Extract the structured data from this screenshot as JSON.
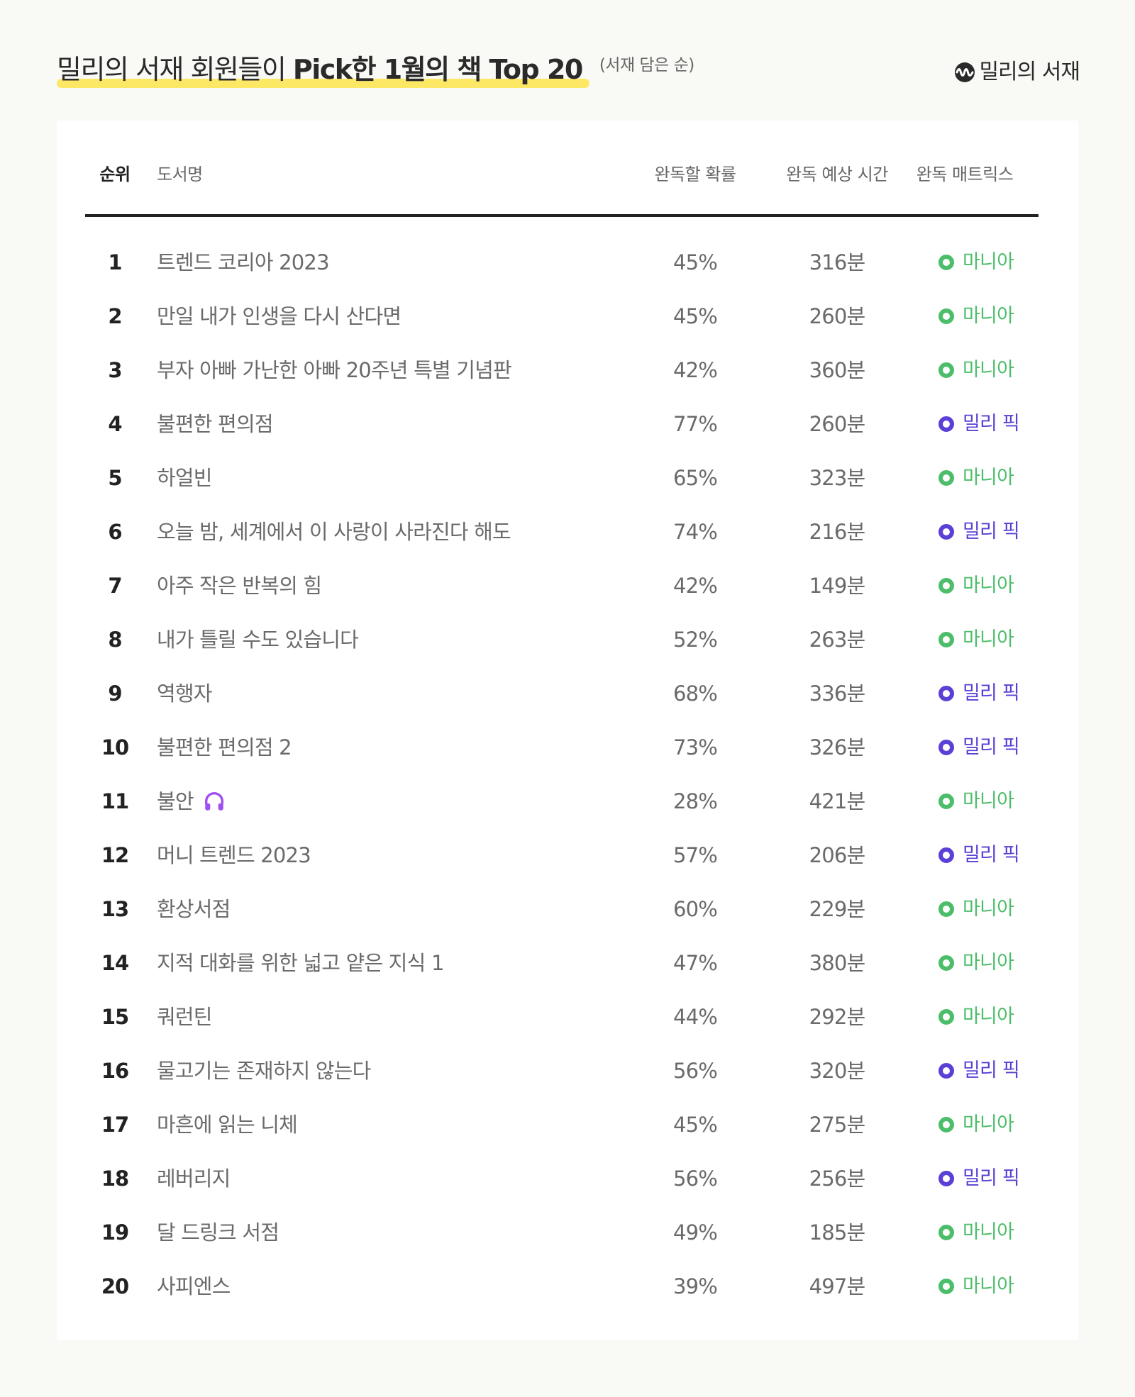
{
  "header": {
    "title_light": "밀리의 서재 회원들이 ",
    "title_bold": "Pick한 1월의 책 Top 20",
    "subtitle": "(서재 담은 순)",
    "logo_text": "밀리의 서재",
    "highlight_color": "#fde865"
  },
  "table": {
    "columns": {
      "rank": "순위",
      "title": "도서명",
      "completion_rate": "완독할 확률",
      "estimated_time": "완독 예상 시간",
      "matrix": "완독 매트릭스"
    },
    "matrix_colors": {
      "마니아": "#4cbe6a",
      "밀리 픽": "#5b3fd6"
    },
    "rows": [
      {
        "rank": "1",
        "title": "트렌드 코리아 2023",
        "rate": "45%",
        "time": "316분",
        "matrix": "마니아"
      },
      {
        "rank": "2",
        "title": "만일 내가 인생을 다시 산다면",
        "rate": "45%",
        "time": "260분",
        "matrix": "마니아"
      },
      {
        "rank": "3",
        "title": "부자 아빠 가난한 아빠 20주년 특별 기념판",
        "rate": "42%",
        "time": "360분",
        "matrix": "마니아"
      },
      {
        "rank": "4",
        "title": "불편한 편의점",
        "rate": "77%",
        "time": "260분",
        "matrix": "밀리 픽"
      },
      {
        "rank": "5",
        "title": "하얼빈",
        "rate": "65%",
        "time": "323분",
        "matrix": "마니아"
      },
      {
        "rank": "6",
        "title": "오늘 밤, 세계에서 이 사랑이 사라진다 해도",
        "rate": "74%",
        "time": "216분",
        "matrix": "밀리 픽"
      },
      {
        "rank": "7",
        "title": "아주 작은 반복의 힘",
        "rate": "42%",
        "time": "149분",
        "matrix": "마니아"
      },
      {
        "rank": "8",
        "title": "내가 틀릴 수도 있습니다",
        "rate": "52%",
        "time": "263분",
        "matrix": "마니아"
      },
      {
        "rank": "9",
        "title": "역행자",
        "rate": "68%",
        "time": "336분",
        "matrix": "밀리 픽"
      },
      {
        "rank": "10",
        "title": "불편한 편의점 2",
        "rate": "73%",
        "time": "326분",
        "matrix": "밀리 픽"
      },
      {
        "rank": "11",
        "title": "불안",
        "rate": "28%",
        "time": "421분",
        "matrix": "마니아",
        "icon": "headphones-icon"
      },
      {
        "rank": "12",
        "title": "머니 트렌드 2023",
        "rate": "57%",
        "time": "206분",
        "matrix": "밀리 픽"
      },
      {
        "rank": "13",
        "title": "환상서점",
        "rate": "60%",
        "time": "229분",
        "matrix": "마니아"
      },
      {
        "rank": "14",
        "title": "지적 대화를 위한 넓고 얕은 지식 1",
        "rate": "47%",
        "time": "380분",
        "matrix": "마니아"
      },
      {
        "rank": "15",
        "title": "쿼런틴",
        "rate": "44%",
        "time": "292분",
        "matrix": "마니아"
      },
      {
        "rank": "16",
        "title": "물고기는 존재하지 않는다",
        "rate": "56%",
        "time": "320분",
        "matrix": "밀리 픽"
      },
      {
        "rank": "17",
        "title": "마흔에 읽는 니체",
        "rate": "45%",
        "time": "275분",
        "matrix": "마니아"
      },
      {
        "rank": "18",
        "title": "레버리지",
        "rate": "56%",
        "time": "256분",
        "matrix": "밀리 픽"
      },
      {
        "rank": "19",
        "title": "달 드링크 서점",
        "rate": "49%",
        "time": "185분",
        "matrix": "마니아"
      },
      {
        "rank": "20",
        "title": "사피엔스",
        "rate": "39%",
        "time": "497분",
        "matrix": "마니아"
      }
    ]
  }
}
